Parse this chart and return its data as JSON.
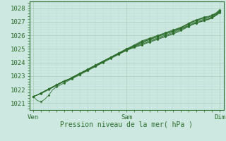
{
  "xlabel": "Pression niveau de la mer( hPa )",
  "xtick_labels": [
    "Ven",
    "Sam",
    "Dim"
  ],
  "xtick_positions": [
    0,
    48,
    96
  ],
  "ylim": [
    1020.5,
    1028.5
  ],
  "yticks": [
    1021,
    1022,
    1023,
    1024,
    1025,
    1026,
    1027,
    1028
  ],
  "xlim": [
    -2,
    98
  ],
  "bg_color": "#cce8e0",
  "grid_major_color": "#aaccbb",
  "grid_minor_color": "#bbddd4",
  "line_color": "#2d6e2d",
  "figsize": [
    3.2,
    2.0
  ],
  "dpi": 100,
  "lines": [
    [
      1021.5,
      1021.2,
      1021.1,
      1021.3,
      1021.6,
      1022.0,
      1022.2,
      1022.35,
      1022.5,
      1022.65,
      1022.8,
      1022.95,
      1023.1,
      1023.25,
      1023.4,
      1023.55,
      1023.7,
      1023.85,
      1024.0,
      1024.15,
      1024.3,
      1024.45,
      1024.6,
      1024.75,
      1024.9,
      1025.05,
      1025.2,
      1025.35,
      1025.5,
      1025.6,
      1025.7,
      1025.8,
      1025.9,
      1026.0,
      1026.1,
      1026.2,
      1026.3,
      1026.4,
      1026.5,
      1026.6,
      1026.7,
      1026.8,
      1026.9,
      1027.0,
      1027.1,
      1027.2,
      1027.3,
      1027.5,
      1027.8
    ],
    [
      1021.5,
      1021.6,
      1021.7,
      1021.85,
      1022.0,
      1022.15,
      1022.3,
      1022.45,
      1022.6,
      1022.7,
      1022.85,
      1023.0,
      1023.15,
      1023.3,
      1023.45,
      1023.6,
      1023.75,
      1023.9,
      1024.05,
      1024.2,
      1024.35,
      1024.5,
      1024.65,
      1024.8,
      1024.95,
      1025.1,
      1025.25,
      1025.4,
      1025.55,
      1025.65,
      1025.75,
      1025.85,
      1025.95,
      1026.05,
      1026.15,
      1026.25,
      1026.35,
      1026.45,
      1026.55,
      1026.7,
      1026.85,
      1027.0,
      1027.1,
      1027.2,
      1027.3,
      1027.35,
      1027.45,
      1027.6,
      1027.85
    ],
    [
      1021.5,
      1021.6,
      1021.75,
      1021.9,
      1022.05,
      1022.2,
      1022.35,
      1022.5,
      1022.65,
      1022.75,
      1022.9,
      1023.05,
      1023.2,
      1023.35,
      1023.5,
      1023.65,
      1023.8,
      1023.95,
      1024.1,
      1024.25,
      1024.4,
      1024.55,
      1024.7,
      1024.85,
      1025.0,
      1025.15,
      1025.3,
      1025.45,
      1025.6,
      1025.7,
      1025.8,
      1025.9,
      1026.0,
      1026.1,
      1026.2,
      1026.3,
      1026.4,
      1026.5,
      1026.6,
      1026.75,
      1026.9,
      1027.05,
      1027.15,
      1027.25,
      1027.35,
      1027.4,
      1027.5,
      1027.65,
      1027.9
    ],
    [
      1021.5,
      1021.6,
      1021.75,
      1021.9,
      1022.05,
      1022.2,
      1022.35,
      1022.5,
      1022.65,
      1022.75,
      1022.9,
      1023.05,
      1023.2,
      1023.35,
      1023.5,
      1023.65,
      1023.8,
      1023.95,
      1024.1,
      1024.25,
      1024.4,
      1024.55,
      1024.7,
      1024.85,
      1025.0,
      1025.1,
      1025.2,
      1025.35,
      1025.5,
      1025.6,
      1025.7,
      1025.82,
      1025.92,
      1026.02,
      1026.12,
      1026.22,
      1026.32,
      1026.45,
      1026.55,
      1026.7,
      1026.85,
      1027.0,
      1027.1,
      1027.2,
      1027.28,
      1027.33,
      1027.45,
      1027.6,
      1027.8
    ],
    [
      1021.5,
      1021.6,
      1021.75,
      1021.9,
      1022.05,
      1022.2,
      1022.35,
      1022.5,
      1022.65,
      1022.75,
      1022.9,
      1023.05,
      1023.2,
      1023.35,
      1023.5,
      1023.65,
      1023.8,
      1023.95,
      1024.1,
      1024.25,
      1024.4,
      1024.55,
      1024.7,
      1024.85,
      1025.0,
      1025.1,
      1025.2,
      1025.3,
      1025.42,
      1025.52,
      1025.62,
      1025.72,
      1025.82,
      1025.92,
      1026.02,
      1026.12,
      1026.22,
      1026.35,
      1026.48,
      1026.62,
      1026.78,
      1026.92,
      1027.02,
      1027.12,
      1027.2,
      1027.25,
      1027.38,
      1027.55,
      1027.75
    ],
    [
      1021.5,
      1021.6,
      1021.75,
      1021.9,
      1022.05,
      1022.2,
      1022.35,
      1022.5,
      1022.65,
      1022.75,
      1022.9,
      1023.05,
      1023.2,
      1023.35,
      1023.5,
      1023.65,
      1023.8,
      1023.95,
      1024.1,
      1024.25,
      1024.38,
      1024.52,
      1024.65,
      1024.78,
      1024.92,
      1025.05,
      1025.15,
      1025.25,
      1025.35,
      1025.45,
      1025.55,
      1025.65,
      1025.75,
      1025.85,
      1025.95,
      1026.05,
      1026.15,
      1026.28,
      1026.42,
      1026.55,
      1026.7,
      1026.85,
      1026.95,
      1027.05,
      1027.12,
      1027.18,
      1027.3,
      1027.5,
      1027.7
    ],
    [
      1021.5,
      1021.6,
      1021.75,
      1021.9,
      1022.05,
      1022.2,
      1022.35,
      1022.5,
      1022.62,
      1022.72,
      1022.85,
      1023.0,
      1023.12,
      1023.28,
      1023.42,
      1023.58,
      1023.72,
      1023.88,
      1024.02,
      1024.18,
      1024.32,
      1024.48,
      1024.62,
      1024.75,
      1024.88,
      1025.0,
      1025.1,
      1025.2,
      1025.3,
      1025.4,
      1025.5,
      1025.6,
      1025.7,
      1025.8,
      1025.9,
      1026.0,
      1026.1,
      1026.22,
      1026.35,
      1026.5,
      1026.65,
      1026.8,
      1026.9,
      1027.0,
      1027.08,
      1027.15,
      1027.28,
      1027.45,
      1027.65
    ]
  ]
}
